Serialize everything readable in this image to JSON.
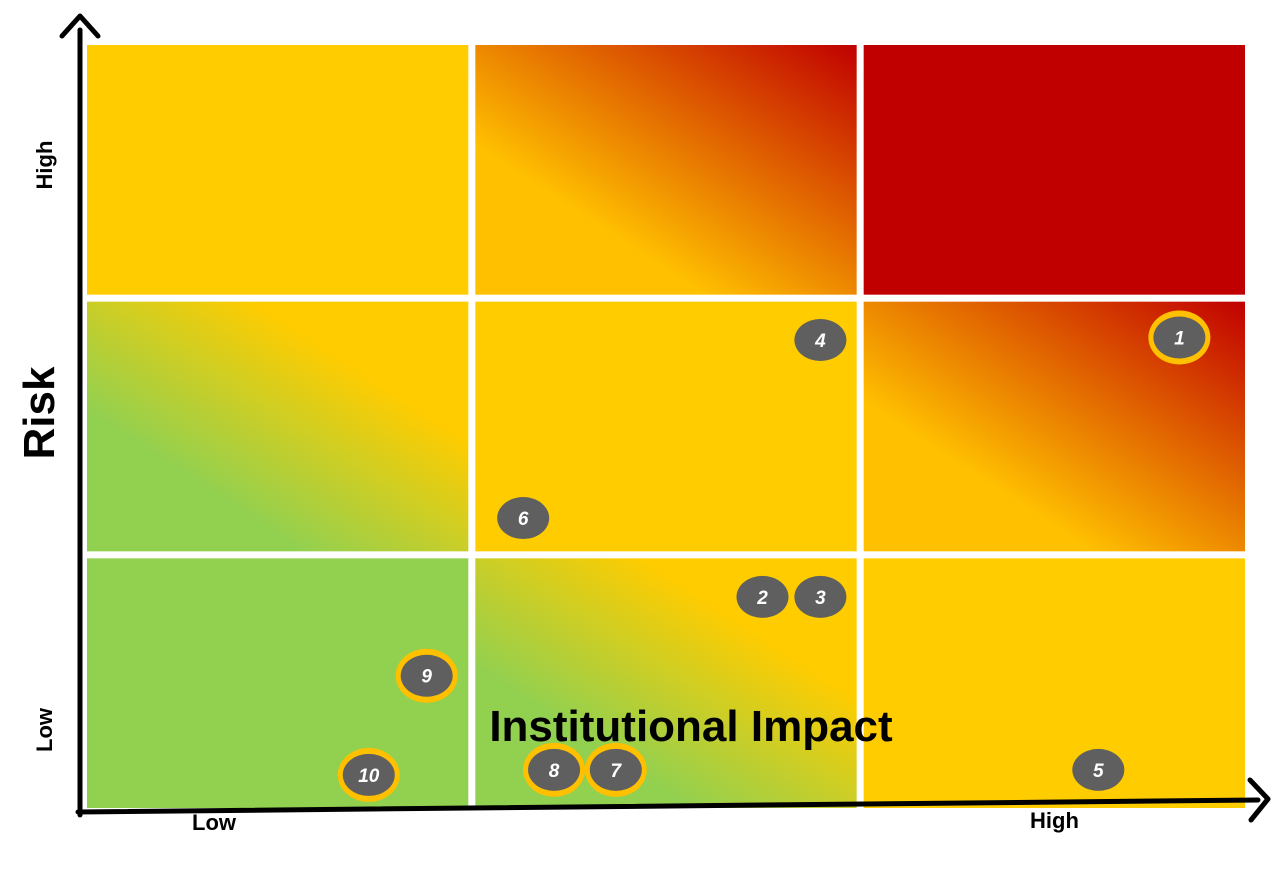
{
  "chart_data": {
    "type": "scatter",
    "title": "",
    "xlabel": "Institutional Impact",
    "ylabel": "Risk",
    "x_tick_labels": {
      "low": "Low",
      "high": "High"
    },
    "y_tick_labels": {
      "low": "Low",
      "high": "High"
    },
    "xlim": [
      0,
      3
    ],
    "ylim": [
      0,
      3
    ],
    "grid": "3x3",
    "zone_colors": {
      "green": "#92d050",
      "yellow": "#ffcc00",
      "orange": "#ffc000",
      "red": "#c00000"
    },
    "zones": [
      {
        "col": 0,
        "row": 0,
        "fill": "green"
      },
      {
        "col": 1,
        "row": 0,
        "fill": "green-to-yellow"
      },
      {
        "col": 2,
        "row": 0,
        "fill": "yellow"
      },
      {
        "col": 0,
        "row": 1,
        "fill": "green-to-yellow"
      },
      {
        "col": 1,
        "row": 1,
        "fill": "yellow"
      },
      {
        "col": 2,
        "row": 1,
        "fill": "orange-to-red"
      },
      {
        "col": 0,
        "row": 2,
        "fill": "yellow"
      },
      {
        "col": 1,
        "row": 2,
        "fill": "orange-to-red"
      },
      {
        "col": 2,
        "row": 2,
        "fill": "red"
      }
    ],
    "points": [
      {
        "label": "1",
        "x": 2.83,
        "y": 1.85,
        "highlighted": true
      },
      {
        "label": "2",
        "x": 1.75,
        "y": 0.83,
        "highlighted": false
      },
      {
        "label": "3",
        "x": 1.9,
        "y": 0.83,
        "highlighted": false
      },
      {
        "label": "4",
        "x": 1.9,
        "y": 1.84,
        "highlighted": false
      },
      {
        "label": "5",
        "x": 2.62,
        "y": 0.15,
        "highlighted": false
      },
      {
        "label": "6",
        "x": 1.13,
        "y": 1.14,
        "highlighted": false
      },
      {
        "label": "7",
        "x": 1.37,
        "y": 0.15,
        "highlighted": true
      },
      {
        "label": "8",
        "x": 1.21,
        "y": 0.15,
        "highlighted": true
      },
      {
        "label": "9",
        "x": 0.88,
        "y": 0.52,
        "highlighted": true
      },
      {
        "label": "10",
        "x": 0.73,
        "y": 0.13,
        "highlighted": true
      }
    ],
    "marker_color": "#5f5f5f",
    "highlight_ring_color": "#ffc000"
  }
}
